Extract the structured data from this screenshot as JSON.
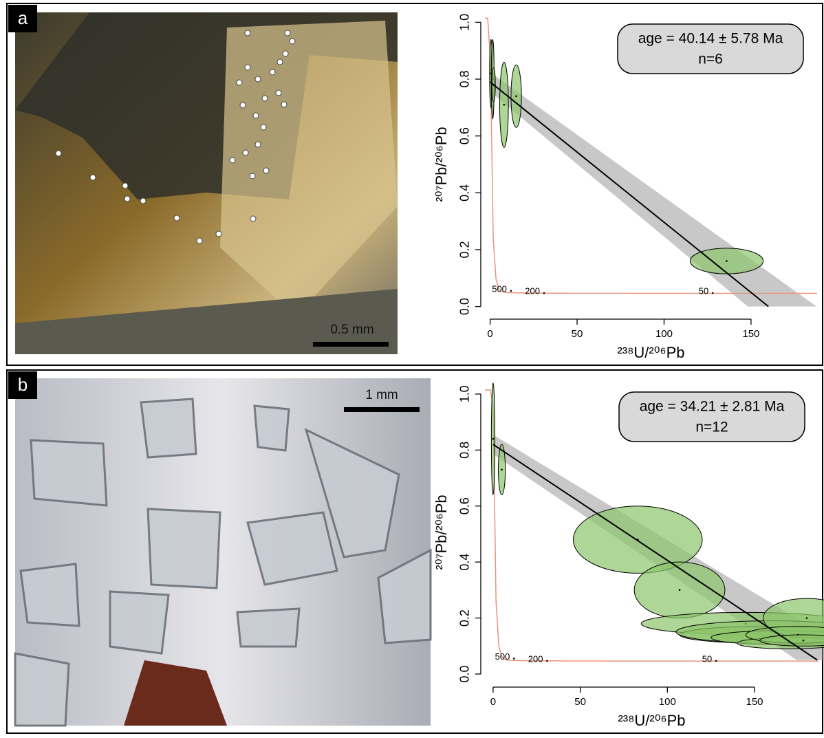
{
  "chart_data": [
    {
      "type": "tera-wasserburg",
      "panel_label": "a",
      "scale_bar_label": "0.5 mm",
      "annotation": [
        "age = 40.14 ± 5.78 Ma",
        "n=6"
      ],
      "x_label": "²³⁸U/²⁰⁶Pb",
      "y_label": "²⁰⁷Pb/²⁰⁶Pb",
      "xlim": [
        -3,
        188
      ],
      "ylim": [
        -0.03,
        1.03
      ],
      "xticks": [
        0,
        50,
        100,
        150
      ],
      "yticks": [
        {
          "value": 0,
          "label": "0.0"
        },
        {
          "value": 0.2,
          "label": "0.2"
        },
        {
          "value": 0.4,
          "label": "0.4"
        },
        {
          "value": 0.6,
          "label": "0.6"
        },
        {
          "value": 0.8,
          "label": "0.8"
        },
        {
          "value": 1,
          "label": "1.0"
        }
      ],
      "series": [
        {
          "color": "#8cc56a",
          "x": [
            0.5,
            1.5,
            8,
            15,
            136,
            2
          ],
          "y": [
            0.82,
            0.8,
            0.71,
            0.74,
            0.16,
            0.78
          ],
          "x_err": [
            0.8,
            0.8,
            2.5,
            3,
            21,
            1
          ],
          "y_err": [
            0.12,
            0.14,
            0.15,
            0.11,
            0.045,
            0.06
          ]
        }
      ],
      "fit_x": [
        0,
        160
      ],
      "fit_y": [
        0.79,
        0
      ],
      "concordia_labels": [
        {
          "label": "500",
          "x": 12,
          "y": 0.055
        },
        {
          "label": "200",
          "x": 31,
          "y": 0.047
        },
        {
          "label": "50",
          "x": 128,
          "y": 0.047
        }
      ]
    },
    {
      "type": "tera-wasserburg",
      "panel_label": "b",
      "scale_bar_label": "1 mm",
      "annotation": [
        "age = 34.21 ± 2.81 Ma",
        "n=12"
      ],
      "x_label": "²³⁸U/²⁰⁶Pb",
      "y_label": "²⁰⁷Pb/²⁰⁶Pb",
      "xlim": [
        -4.7,
        186.7
      ],
      "ylim": [
        -0.032,
        1.044
      ],
      "xticks": [
        0,
        50,
        100,
        150
      ],
      "yticks": [
        {
          "value": 0,
          "label": "0.0"
        },
        {
          "value": 0.2,
          "label": "0.2"
        },
        {
          "value": 0.4,
          "label": "0.4"
        },
        {
          "value": 0.6,
          "label": "0.6"
        },
        {
          "value": 0.8,
          "label": "0.8"
        },
        {
          "value": 1,
          "label": "1.0"
        }
      ],
      "series": [
        {
          "color": "#8cc56a",
          "x": [
            5,
            0,
            83,
            107,
            145,
            155,
            160,
            165,
            170,
            180,
            175,
            178
          ],
          "y": [
            0.73,
            0.84,
            0.48,
            0.3,
            0.18,
            0.14,
            0.15,
            0.13,
            0.11,
            0.2,
            0.14,
            0.12
          ],
          "x_err": [
            2,
            1,
            37,
            26,
            60,
            48,
            55,
            40,
            30,
            25,
            30,
            25
          ],
          "y_err": [
            0.09,
            0.2,
            0.12,
            0.1,
            0.04,
            0.03,
            0.04,
            0.025,
            0.02,
            0.07,
            0.03,
            0.02
          ]
        }
      ],
      "fit_x": [
        0,
        186
      ],
      "fit_y": [
        0.82,
        0.05
      ],
      "concordia_labels": [
        {
          "label": "500",
          "x": 12,
          "y": 0.055
        },
        {
          "label": "200",
          "x": 31,
          "y": 0.047
        },
        {
          "label": "50",
          "x": 128,
          "y": 0.047
        }
      ]
    }
  ]
}
